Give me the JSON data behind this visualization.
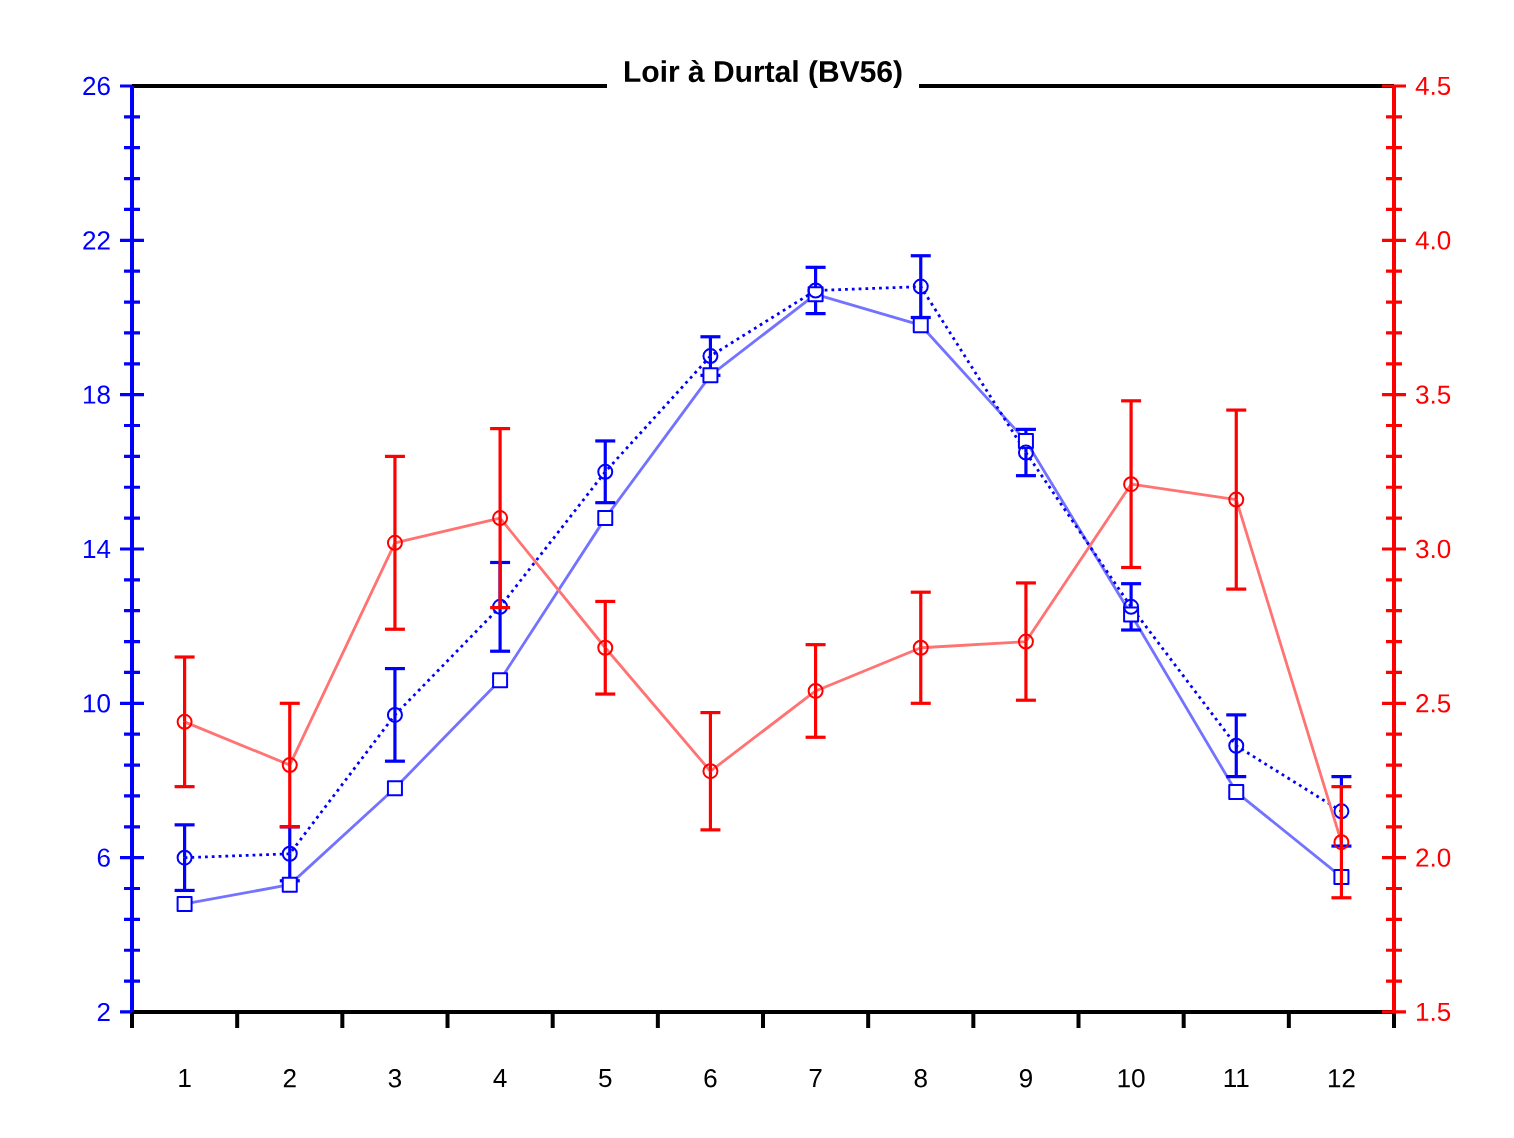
{
  "chart_data": {
    "type": "line",
    "title": "Loir à Durtal (BV56)",
    "categories": [
      "1",
      "2",
      "3",
      "4",
      "5",
      "6",
      "7",
      "8",
      "9",
      "10",
      "11",
      "12"
    ],
    "series": [
      {
        "color": "#0000ff",
        "marker": "square",
        "line_style": "solid",
        "values": [
          4.8,
          5.3,
          7.8,
          10.6,
          14.8,
          18.5,
          20.6,
          19.8,
          16.8,
          12.3,
          7.7,
          5.5
        ]
      },
      {
        "color": "#0000ff",
        "marker": "circle",
        "line_style": "dotted",
        "values": [
          6.0,
          6.1,
          9.7,
          12.5,
          16.0,
          19.0,
          20.7,
          20.8,
          16.5,
          12.5,
          8.9,
          7.2
        ],
        "errors": [
          0.85,
          0.7,
          1.2,
          1.15,
          0.8,
          0.5,
          0.6,
          0.8,
          0.6,
          0.6,
          0.8,
          0.9
        ]
      },
      {
        "color": "#ff0000",
        "marker": "circle",
        "line_style": "solid",
        "axis": "y2",
        "values": [
          2.44,
          2.3,
          3.02,
          3.1,
          2.68,
          2.28,
          2.54,
          2.68,
          2.7,
          3.21,
          3.16,
          2.05
        ],
        "errors": [
          0.21,
          0.2,
          0.28,
          0.29,
          0.15,
          0.19,
          0.15,
          0.18,
          0.19,
          0.27,
          0.29,
          0.18
        ]
      }
    ],
    "ylim": [
      2,
      26
    ],
    "yticks": [
      2,
      6,
      10,
      14,
      18,
      22,
      26
    ],
    "y2lim": [
      1.5,
      4.5
    ],
    "y2ticks": [
      1.5,
      {
        "value": 2,
        "label": "2.0"
      },
      2.5,
      {
        "value": 3,
        "label": "3.0"
      },
      3.5,
      {
        "value": 4,
        "label": "4.0"
      },
      4.5
    ]
  }
}
